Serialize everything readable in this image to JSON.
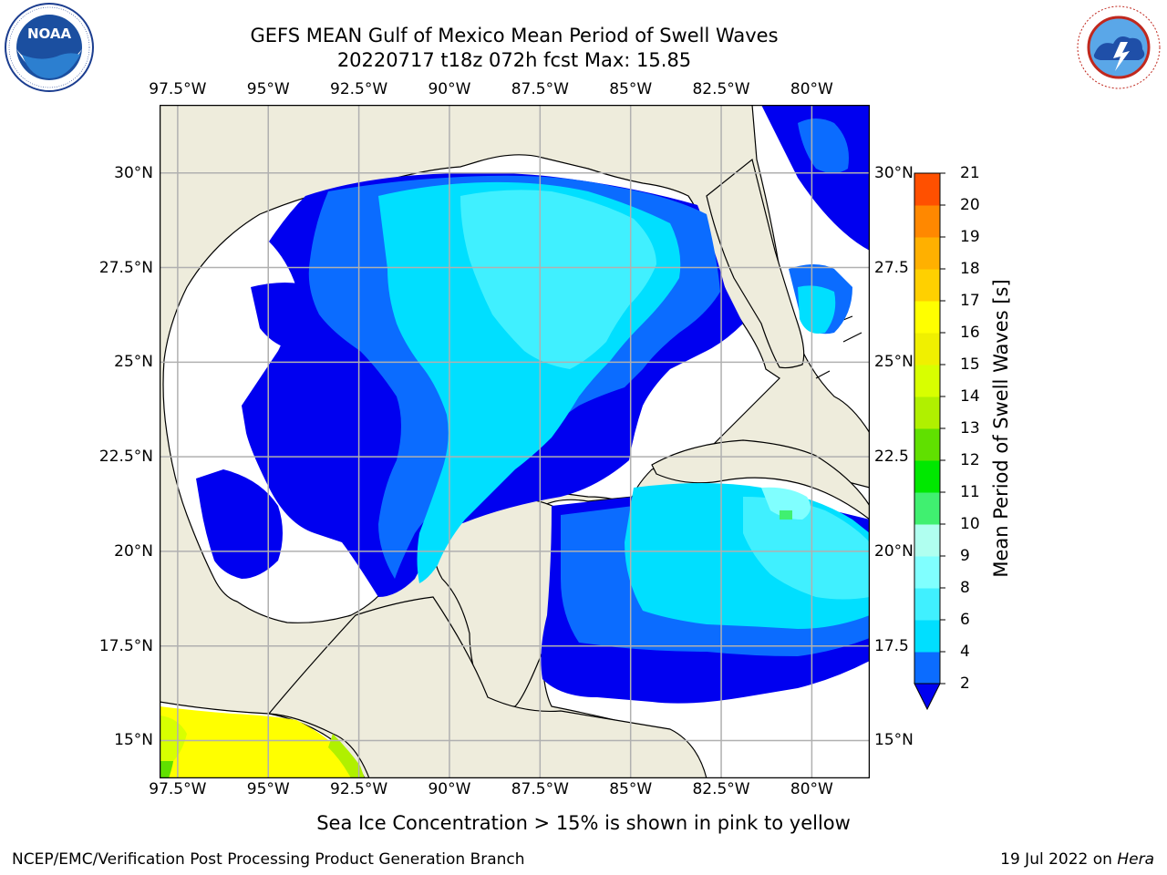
{
  "title": {
    "line1": "GEFS MEAN Gulf of Mexico Mean Period of Swell Waves",
    "line2": "20220717 t18z 072h fcst   Max: 15.85"
  },
  "map": {
    "lon_labels": [
      "97.5°W",
      "95°W",
      "92.5°W",
      "90°W",
      "87.5°W",
      "85°W",
      "82.5°W",
      "80°W"
    ],
    "lat_labels_left": [
      "30°N",
      "27.5°N",
      "25°N",
      "22.5°N",
      "20°N",
      "17.5°N",
      "15°N"
    ],
    "lat_labels_right": [
      "30°N",
      "27.5",
      "25°N",
      "22.5",
      "20°N",
      "17.5",
      "15°N"
    ],
    "lon_range": [
      -98,
      -78.4
    ],
    "lat_range": [
      14,
      31.8
    ],
    "land_color": "#eeecdc",
    "ocean_nodata_color": "#ffffff",
    "grid_color": "#b0b0b0"
  },
  "colorbar": {
    "label": "Mean Period of Swell Waves [s]",
    "ticks": [
      "2",
      "4",
      "6",
      "8",
      "9",
      "10",
      "11",
      "12",
      "13",
      "14",
      "15",
      "16",
      "17",
      "18",
      "19",
      "20",
      "21"
    ],
    "colors": [
      "#0b6cff",
      "#00dfff",
      "#40f0ff",
      "#80ffff",
      "#b0fff0",
      "#40f070",
      "#00e800",
      "#60e000",
      "#b0f000",
      "#d8ff00",
      "#f0f000",
      "#ffff00",
      "#ffd000",
      "#ffb000",
      "#ff8800",
      "#ff5000",
      "#ff2000",
      "#ff0000"
    ],
    "under_color": "#0000f0"
  },
  "caption": "Sea Ice Concentration > 15% is shown in pink to yellow",
  "footer": {
    "left": "NCEP/EMC/Verification Post Processing Product Generation Branch",
    "right_prefix": "19 Jul 2022 on ",
    "right_host": "Hera"
  },
  "logos": {
    "left": "NOAA",
    "right": "NATIONAL WEATHER SERVICE"
  }
}
